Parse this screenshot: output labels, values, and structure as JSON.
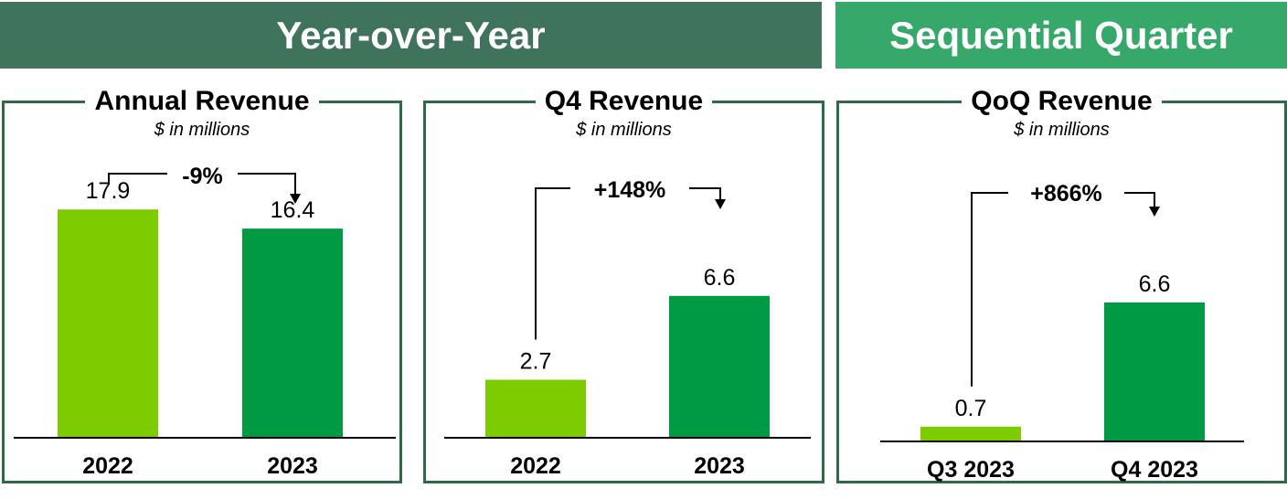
{
  "banners": {
    "yoy": "Year-over-Year",
    "sequential": "Sequential Quarter"
  },
  "colors": {
    "yoy_banner": "#3f735b",
    "seq_banner": "#36a86a",
    "border": "#2e6b45",
    "prior_bar": "#7ccc00",
    "current_bar": "#009a44"
  },
  "chart_data": [
    {
      "type": "bar",
      "title": "Annual Revenue",
      "subtitle": "$ in millions",
      "categories": [
        "2022",
        "2023"
      ],
      "values": [
        17.9,
        16.4
      ],
      "value_labels": [
        "17.9",
        "16.4"
      ],
      "change_label": "-9%",
      "ylim": [
        0,
        18.2
      ]
    },
    {
      "type": "bar",
      "title": "Q4 Revenue",
      "subtitle": "$ in millions",
      "categories": [
        "2022",
        "2023"
      ],
      "values": [
        2.7,
        6.6
      ],
      "value_labels": [
        "2.7",
        "6.6"
      ],
      "change_label": "+148%",
      "ylim": [
        0,
        10.8
      ]
    },
    {
      "type": "bar",
      "title": "QoQ Revenue",
      "subtitle": "$ in millions",
      "categories": [
        "Q3 2023",
        "Q4 2023"
      ],
      "values": [
        0.7,
        6.6
      ],
      "value_labels": [
        "0.7",
        "6.6"
      ],
      "change_label": "+866%",
      "ylim": [
        0,
        11.2
      ]
    }
  ]
}
